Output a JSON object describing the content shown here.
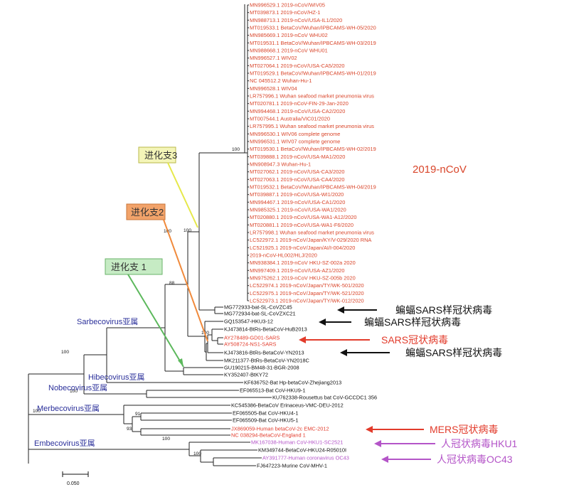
{
  "colors": {
    "ncov_red": "#d9452a",
    "black": "#111111",
    "sars_red": "#e23b2b",
    "mers_red": "#e23b2b",
    "hku1_purple": "#b455c8",
    "genus_blue": "#2a2f9a",
    "clade1_green": "#5cb85c",
    "clade2_orange": "#f08a3c",
    "clade3_yellow": "#e6e84a"
  },
  "ncov_label": "2019-nCoV",
  "ncov_leaves": [
    "MN996529.1 2019-nCoV/WIV05",
    "MT039873.1 2019-nCoV/HZ-1",
    "MN988713.1 2019-nCoV/USA-IL1/2020",
    "MT019533.1 BetaCoV/Wuhan/IPBCAMS-WH-05/2020",
    "MN985669.1 2019-nCoV WHU02",
    "MT019531.1 BetaCoV/Wuhan/IPBCAMS-WH-03/2019",
    "MN988668.1 2019-nCoV WHU01",
    "MN996527.1 WIV02",
    "MT027064.1 2019-nCoV/USA-CA5/2020",
    "MT019529.1 BetaCoV/Wuhan/IPBCAMS-WH-01/2019",
    "NC 045512.2 Wuhan-Hu-1",
    "MN996528.1 WIV04",
    "LR757996.1 Wuhan seafood market pneumonia virus",
    "MT020781.1 2019-nCoV-FIN-29-Jan-2020",
    "MN994468.1 2019-nCoV/USA-CA2/2020",
    "MT007544.1 Australia/VIC01/2020",
    "LR757995.1 Wuhan seafood market pneumonia virus",
    "MN996530.1 WIV06 complete genome",
    "MN996531.1 WIV07 complete genome",
    "MT019530.1 BetaCoV/Wuhan/IPBCAMS-WH-02/2019",
    "MT039888.1 2019-nCoV/USA-MA1/2020",
    "MN908947.3 Wuhan-Hu-1",
    "MT027062.1 2019-nCoV/USA-CA3/2020",
    "MT027063.1 2019-nCoV/USA-CA4/2020",
    "MT019532.1 BetaCoV/Wuhan/IPBCAMS-WH-04/2019",
    "MT039887.1 2019-nCoV/USA-WI1/2020",
    "MN994467.1 2019-nCoV/USA-CA1/2020",
    "MN985325.1 2019-nCoV/USA-WA1/2020",
    "MT020880.1 2019-nCoV/USA-WA1-A12/2020",
    "MT020881.1 2019-nCoV/USA-WA1-F6/2020",
    "LR757998.1 Wuhan seafood market pneumonia virus",
    "LC522972.1 2019-nCoV/Japan/KY/V-029/2020 RNA",
    "LC521925.1 2019-nCoV/Japan/AI/I-004/2020",
    "2019-nCoV-HL002/HLJ/2020",
    "MN938384.1 2019-nCoV HKU-SZ-002a 2020",
    "MN997409.1 2019-nCoV/USA-AZ1/2020",
    "MN975262.1 2019-nCoV HKU-SZ-005b 2020",
    "LC522974.1 2019-nCoV/Japan/TY/WK-501/2020",
    "LC522975.1 2019-nCoV/Japan/TY/WK-521/2020",
    "LC522973.1 2019-nCoV/Japan/TY/WK-012/2020"
  ],
  "other_leaves": [
    {
      "id": "bat-zc45",
      "label": "MG772933-bat-SL-CoVZC45",
      "color": "black"
    },
    {
      "id": "bat-zxc21",
      "label": "MG772934-bat-SL-CoVZXC21",
      "color": "black"
    },
    {
      "id": "hku3",
      "label": "GQ153547-HKU3-12",
      "color": "black"
    },
    {
      "id": "hub2013",
      "label": "KJ473814-BtRs-BetaCoV-HuB2013",
      "color": "black"
    },
    {
      "id": "gd01",
      "label": "AY278489-GD01-SARS",
      "color": "sars_red"
    },
    {
      "id": "ns1",
      "label": "AY508724-NS1-SARS",
      "color": "sars_red"
    },
    {
      "id": "yn2013",
      "label": "KJ473816-BtRs-BetaCoV-YN2013",
      "color": "black"
    },
    {
      "id": "yn2018c",
      "label": "MK211377-BtRs-BetaCoV-YN2018C",
      "color": "black"
    },
    {
      "id": "bgr2008",
      "label": "GU190215-BM48-31-BGR-2008",
      "color": "black"
    },
    {
      "id": "btky72",
      "label": "KY352407-BtKY72",
      "color": "black"
    },
    {
      "id": "zhejiang",
      "label": "KF636752-Bat Hp-betaCoV-Zhejiang2013",
      "color": "black"
    },
    {
      "id": "hku9",
      "label": "EF065513-Bat CoV-HKU9-1",
      "color": "black"
    },
    {
      "id": "gccdc1",
      "label": "KU762338-Rousettus bat CoV-GCCDC1 356",
      "color": "black"
    },
    {
      "id": "erinaceus",
      "label": "KC545386-BetaCoV Erinaceus-VMC-DEU-2012",
      "color": "black"
    },
    {
      "id": "hku4",
      "label": "EF065505-Bat CoV-HKU4-1",
      "color": "black"
    },
    {
      "id": "hku5",
      "label": "EF065509-Bat CoV-HKU5-1",
      "color": "black"
    },
    {
      "id": "emc",
      "label": "JX869059-Human betaCoV-2c EMC-2012",
      "color": "mers_red"
    },
    {
      "id": "england",
      "label": "NC 038294-BetaCoV-England 1",
      "color": "mers_red"
    },
    {
      "id": "hku1sc",
      "label": "MK167038-Human CoV-HKU1-SC2521",
      "color": "hku1_purple"
    },
    {
      "id": "hku24",
      "label": "KM349744-BetaCoV-HKU24-R05010I",
      "color": "black"
    },
    {
      "id": "oc43",
      "label": "AY391777-Human coronavirus OC43",
      "color": "hku1_purple"
    },
    {
      "id": "mhv",
      "label": "FJ647223-Murine CoV-MHV-1",
      "color": "black"
    }
  ],
  "bootstrap": [
    "100",
    "100",
    "100",
    "88",
    "100",
    "100",
    "100",
    "100",
    "100",
    "91",
    "93",
    "100"
  ],
  "genera": [
    "Sarbecovirus亚属",
    "Hibecovirus亚属",
    "Nobecovirus亚属",
    "Merbecovirus亚属",
    "Embecovirus亚属"
  ],
  "clade_boxes": [
    "进化支3",
    "进化支2",
    "进化支 1"
  ],
  "callouts": {
    "bat_sars_1": "蝙蝠SARS样冠状病毒",
    "bat_sars_2": "蝙蝠SARS样冠状病毒",
    "sars": "SARS冠状病毒",
    "bat_sars_3": "蝙蝠SARS样冠状病毒",
    "mers": "MERS冠状病毒",
    "hku1": "人冠状病毒HKU1",
    "oc43": "人冠状病毒OC43"
  },
  "scale_label": "0.050"
}
